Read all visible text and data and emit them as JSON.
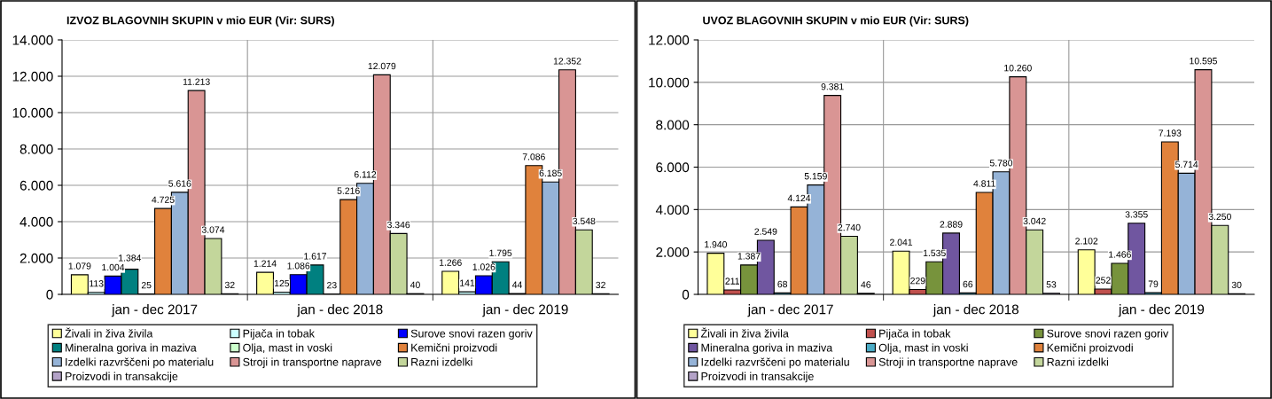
{
  "chart_data": [
    {
      "type": "bar",
      "title": "IZVOZ BLAGOVNIH SKUPIN v mio EUR (Vir: SURS)",
      "categories": [
        "jan - dec 2017",
        "jan - dec 2018",
        "jan - dec 2019"
      ],
      "ylim": [
        0,
        14000
      ],
      "yticks": [
        {
          "value": 0,
          "label": "0"
        },
        {
          "value": 2000,
          "label": "2.000"
        },
        {
          "value": 4000,
          "label": "4.000"
        },
        {
          "value": 6000,
          "label": "6.000"
        },
        {
          "value": 8000,
          "label": "8.000"
        },
        {
          "value": 10000,
          "label": "10.000"
        },
        {
          "value": 12000,
          "label": "12.000"
        },
        {
          "value": 14000,
          "label": "14.000"
        }
      ],
      "grid": true,
      "legend": "bottom",
      "series": [
        {
          "name": "Živali in živa živila",
          "color": "#ffff99",
          "values": [
            1079,
            1214,
            1266
          ],
          "value_labels": [
            "1.079",
            "1.214",
            "1.266"
          ]
        },
        {
          "name": "Pijača in tobak",
          "color": "#ccffff",
          "values": [
            113,
            125,
            141
          ],
          "value_labels": [
            "113",
            "125",
            "141"
          ]
        },
        {
          "name": "Surove snovi razen goriv",
          "color": "#0000ff",
          "values": [
            1004,
            1086,
            1026
          ],
          "value_labels": [
            "1.004",
            "1.086",
            "1.026"
          ]
        },
        {
          "name": "Mineralna goriva in maziva",
          "color": "#008080",
          "values": [
            1384,
            1617,
            1795
          ],
          "value_labels": [
            "1.384",
            "1.617",
            "1.795"
          ]
        },
        {
          "name": "Olja, mast in voski",
          "color": "#ccffcc",
          "values": [
            25,
            23,
            44
          ],
          "value_labels": [
            "25",
            "23",
            "44"
          ]
        },
        {
          "name": "Kemični proizvodi",
          "color": "#e0823c",
          "values": [
            4725,
            5216,
            7086
          ],
          "value_labels": [
            "4.725",
            "5.216",
            "7.086"
          ]
        },
        {
          "name": "Izdelki razvrščeni po materialu",
          "color": "#95b3d7",
          "values": [
            5616,
            6112,
            6185
          ],
          "value_labels": [
            "5.616",
            "6.112",
            "6.185"
          ]
        },
        {
          "name": "Stroji in transportne naprave",
          "color": "#d99594",
          "values": [
            11213,
            12079,
            12352
          ],
          "value_labels": [
            "11.213",
            "12.079",
            "12.352"
          ]
        },
        {
          "name": "Razni izdelki",
          "color": "#c3d69b",
          "values": [
            3074,
            3346,
            3548
          ],
          "value_labels": [
            "3.074",
            "3.346",
            "3.548"
          ]
        },
        {
          "name": "Proizvodi in transakcije",
          "color": "#b3a2c7",
          "values": [
            32,
            40,
            32
          ],
          "value_labels": [
            "32",
            "40",
            "32"
          ]
        }
      ]
    },
    {
      "type": "bar",
      "title": "UVOZ BLAGOVNIH SKUPIN v mio EUR (Vir: SURS)",
      "categories": [
        "jan - dec 2017",
        "jan - dec 2018",
        "jan - dec 2019"
      ],
      "ylim": [
        0,
        12000
      ],
      "yticks": [
        {
          "value": 0,
          "label": "0"
        },
        {
          "value": 2000,
          "label": "2.000"
        },
        {
          "value": 4000,
          "label": "4.000"
        },
        {
          "value": 6000,
          "label": "6.000"
        },
        {
          "value": 8000,
          "label": "8.000"
        },
        {
          "value": 10000,
          "label": "10.000"
        },
        {
          "value": 12000,
          "label": "12.000"
        }
      ],
      "grid": true,
      "legend": "bottom",
      "series": [
        {
          "name": "Živali in živa živila",
          "color": "#ffff99",
          "values": [
            1940,
            2041,
            2102
          ],
          "value_labels": [
            "1.940",
            "2.041",
            "2.102"
          ]
        },
        {
          "name": "Pijača in tobak",
          "color": "#c0504d",
          "values": [
            211,
            229,
            252
          ],
          "value_labels": [
            "211",
            "229",
            "252"
          ]
        },
        {
          "name": "Surove snovi razen goriv",
          "color": "#77933c",
          "values": [
            1387,
            1535,
            1466
          ],
          "value_labels": [
            "1.387",
            "1.535",
            "1.466"
          ]
        },
        {
          "name": "Mineralna goriva in maziva",
          "color": "#7056a0",
          "values": [
            2549,
            2889,
            3355
          ],
          "value_labels": [
            "2.549",
            "2.889",
            "3.355"
          ]
        },
        {
          "name": "Olja, mast in voski",
          "color": "#4bacc6",
          "values": [
            68,
            66,
            79
          ],
          "value_labels": [
            "68",
            "66",
            "79"
          ]
        },
        {
          "name": "Kemični proizvodi",
          "color": "#e0823c",
          "values": [
            4124,
            4811,
            7193
          ],
          "value_labels": [
            "4.124",
            "4.811",
            "7.193"
          ]
        },
        {
          "name": "Izdelki razvrščeni po materialu",
          "color": "#95b3d7",
          "values": [
            5159,
            5780,
            5714
          ],
          "value_labels": [
            "5.159",
            "5.780",
            "5.714"
          ]
        },
        {
          "name": "Stroji in transportne naprave",
          "color": "#d99594",
          "values": [
            9381,
            10260,
            10595
          ],
          "value_labels": [
            "9.381",
            "10.260",
            "10.595"
          ]
        },
        {
          "name": "Razni izdelki",
          "color": "#c3d69b",
          "values": [
            2740,
            3042,
            3250
          ],
          "value_labels": [
            "2.740",
            "3.042",
            "3.250"
          ]
        },
        {
          "name": "Proizvodi in transakcije",
          "color": "#b3a2c7",
          "values": [
            46,
            53,
            30
          ],
          "value_labels": [
            "46",
            "53",
            "30"
          ]
        }
      ]
    }
  ]
}
